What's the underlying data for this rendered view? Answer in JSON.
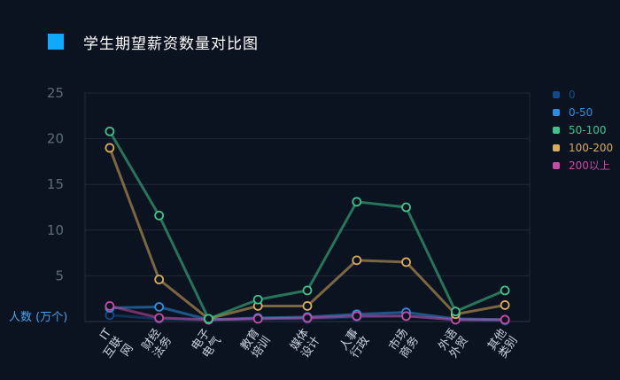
{
  "title": "学生期望薪资数量对比图",
  "accent_color": "#12a8ff",
  "unit_label": "人数 (万个)",
  "legend": [
    {
      "label": "0",
      "color": "#134a86"
    },
    {
      "label": "0-50",
      "color": "#2a8fe0"
    },
    {
      "label": "50-100",
      "color": "#3cc48a"
    },
    {
      "label": "100-200",
      "color": "#d9ac5b"
    },
    {
      "label": "200以上",
      "color": "#c64ba6"
    }
  ],
  "chart_data": {
    "type": "line",
    "title": "学生期望薪资数量对比图",
    "xlabel": "",
    "ylabel": "人数 (万个)",
    "ylim": [
      0,
      25
    ],
    "yticks": [
      5,
      10,
      15,
      20,
      25
    ],
    "grid": true,
    "legend_position": "right",
    "categories": [
      "IT互联网",
      "财经法务",
      "电子电气",
      "教育培训",
      "媒体设计",
      "人事行政",
      "市场商务",
      "外语外贸",
      "其他类别"
    ],
    "series": [
      {
        "name": "0",
        "color": "#134a86",
        "values": [
          0.7,
          0.3,
          0.2,
          0.3,
          0.3,
          0.5,
          0.6,
          0.2,
          0.1
        ]
      },
      {
        "name": "0-50",
        "color": "#2a8fe0",
        "values": [
          1.5,
          1.6,
          0.2,
          0.4,
          0.5,
          0.8,
          1.0,
          0.3,
          0.2
        ]
      },
      {
        "name": "50-100",
        "color": "#3cc48a",
        "values": [
          20.8,
          11.6,
          0.3,
          2.4,
          3.4,
          13.1,
          12.5,
          1.1,
          3.4
        ]
      },
      {
        "name": "100-200",
        "color": "#d9ac5b",
        "values": [
          19.0,
          4.6,
          0.3,
          1.7,
          1.7,
          6.7,
          6.5,
          0.8,
          1.8
        ]
      },
      {
        "name": "200以上",
        "color": "#c64ba6",
        "values": [
          1.7,
          0.4,
          0.2,
          0.3,
          0.4,
          0.6,
          0.6,
          0.2,
          0.2
        ]
      }
    ]
  }
}
